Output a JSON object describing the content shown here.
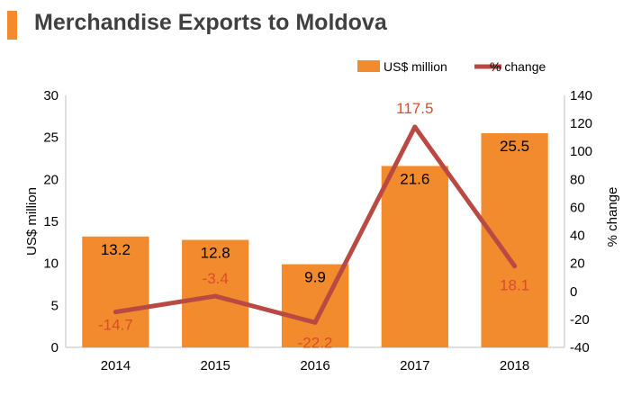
{
  "header": {
    "title": "Merchandise Exports to Moldova"
  },
  "colors": {
    "bar": "#f28a2e",
    "line": "#b94a43",
    "label_bar": "#000000",
    "label_line": "#d94d2a",
    "axis_text": "#000000",
    "title": "#404040",
    "accent": "#f28a2e"
  },
  "chart_data": {
    "type": "bar",
    "title": "Merchandise Exports to Moldova",
    "categories": [
      "2014",
      "2015",
      "2016",
      "2017",
      "2018"
    ],
    "series": [
      {
        "name": "US$ million",
        "type": "bar",
        "axis": "left",
        "values": [
          13.2,
          12.8,
          9.9,
          21.6,
          25.5
        ],
        "labels": [
          "13.2",
          "12.8",
          "9.9",
          "21.6",
          "25.5"
        ]
      },
      {
        "name": "% change",
        "type": "line",
        "axis": "right",
        "values": [
          -14.7,
          -3.4,
          -22.2,
          117.5,
          18.1
        ],
        "labels": [
          "-14.7",
          "-3.4",
          "-22.2",
          "117.5",
          "18.1"
        ]
      }
    ],
    "y_left": {
      "label": "US$ million",
      "lim": [
        0,
        30
      ],
      "ticks": [
        "0",
        "5",
        "10",
        "15",
        "20",
        "25",
        "30"
      ]
    },
    "y_right": {
      "label": "% change",
      "lim": [
        -40,
        140
      ],
      "ticks": [
        "-40",
        "-20",
        "0",
        "20",
        "40",
        "60",
        "80",
        "100",
        "120",
        "140"
      ]
    },
    "legend": {
      "position": "top-right"
    },
    "grid": false
  }
}
